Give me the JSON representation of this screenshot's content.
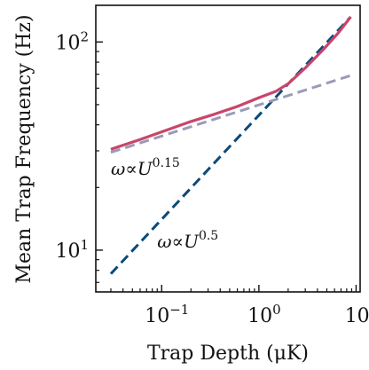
{
  "chart_data": {
    "type": "line",
    "xlabel": "Trap Depth (μK)",
    "ylabel": "Mean Trap Frequency (Hz)",
    "xscale": "log",
    "yscale": "log",
    "xlim": [
      0.021,
      11
    ],
    "ylim": [
      6.3,
      150
    ],
    "x_ticks": [
      {
        "value": 0.1,
        "base": "10",
        "exp": "−1"
      },
      {
        "value": 1,
        "base": "10",
        "exp": "0"
      },
      {
        "value": 10,
        "base": "10",
        "exp": "1"
      }
    ],
    "y_ticks": [
      {
        "value": 10,
        "base": "10",
        "exp": "1"
      },
      {
        "value": 100,
        "base": "10",
        "exp": "2"
      }
    ],
    "grid": false,
    "legend": "none",
    "series": [
      {
        "id": "data",
        "color": "#c8466a",
        "style": "solid",
        "x": [
          0.03,
          0.06,
          0.1,
          0.2,
          0.35,
          0.6,
          1.0,
          1.5,
          2.0,
          3.0,
          4.5,
          6.5,
          8.8
        ],
        "y": [
          30.5,
          34,
          37,
          41.5,
          45,
          49,
          54,
          58,
          63,
          75,
          91,
          110,
          132
        ]
      },
      {
        "id": "fit-0.15",
        "color": "#9a9ab8",
        "style": "dashed",
        "x": [
          0.03,
          8.8
        ],
        "y": [
          29.5,
          69
        ]
      },
      {
        "id": "fit-0.5",
        "color": "#0a4a7a",
        "style": "dashed",
        "x": [
          0.03,
          8.8
        ],
        "y": [
          7.7,
          132
        ]
      }
    ],
    "annotations": [
      {
        "id": "low",
        "prefix": "ω∝U",
        "exp": "0.15",
        "x": 0.03,
        "y": 23
      },
      {
        "id": "high",
        "prefix": "ω∝U",
        "exp": "0.5",
        "x": 0.09,
        "y": 10.3
      }
    ]
  }
}
